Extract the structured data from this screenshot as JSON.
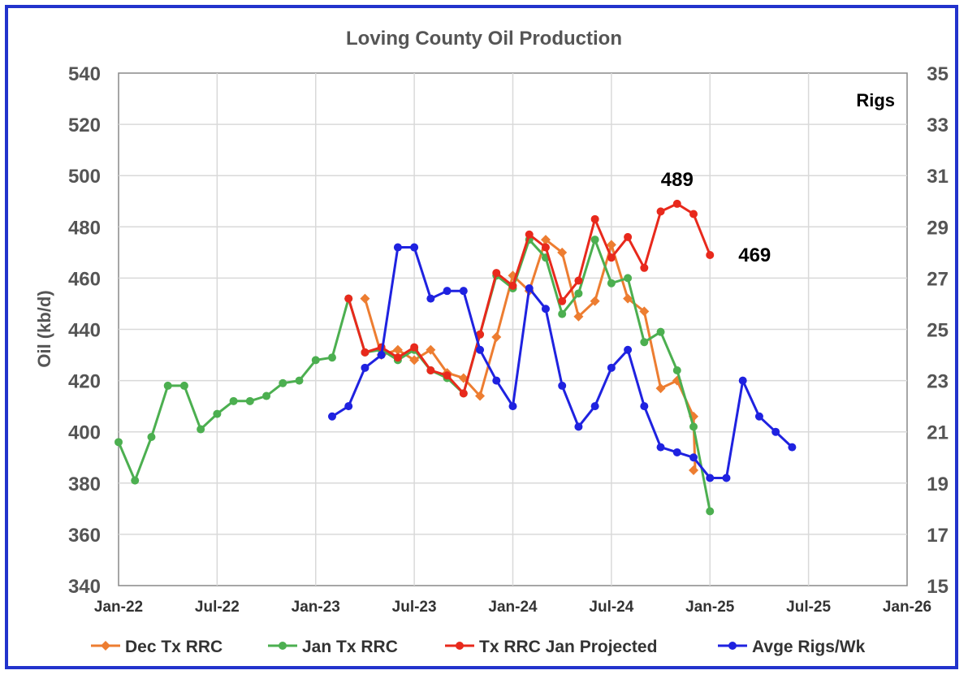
{
  "chart_data": {
    "type": "line",
    "title": "Loving County Oil Production",
    "ylabel": "Oil (kb/d)",
    "y2label": "Rigs",
    "ylim": [
      340,
      540
    ],
    "y_ticks": [
      "540",
      "520",
      "500",
      "480",
      "460",
      "440",
      "420",
      "400",
      "380",
      "360",
      "340"
    ],
    "y2lim": [
      15,
      35
    ],
    "y2_ticks": [
      "35",
      "33",
      "31",
      "29",
      "27",
      "25",
      "23",
      "21",
      "19",
      "17",
      "15"
    ],
    "xlim": [
      "2022-01",
      "2026-01"
    ],
    "x_ticks": [
      {
        "date": "2022-01",
        "label": "Jan-22"
      },
      {
        "date": "2022-07",
        "label": "Jul-22"
      },
      {
        "date": "2023-01",
        "label": "Jan-23"
      },
      {
        "date": "2023-07",
        "label": "Jul-23"
      },
      {
        "date": "2024-01",
        "label": "Jan-24"
      },
      {
        "date": "2024-07",
        "label": "Jul-24"
      },
      {
        "date": "2025-01",
        "label": "Jan-25"
      },
      {
        "date": "2025-07",
        "label": "Jul-25"
      },
      {
        "date": "2026-01",
        "label": "Jan-26"
      }
    ],
    "grid": true,
    "legend_position": "bottom",
    "series": [
      {
        "name": "Dec Tx RRC",
        "color": "#ed7d31",
        "marker": "diamond",
        "axis": "left",
        "x": [
          "2023-04",
          "2023-05",
          "2023-06",
          "2023-07",
          "2023-08",
          "2023-09",
          "2023-10",
          "2023-11",
          "2023-12",
          "2024-01",
          "2024-02",
          "2024-03",
          "2024-04",
          "2024-05",
          "2024-06",
          "2024-07",
          "2024-08",
          "2024-09",
          "2024-10",
          "2024-11",
          "2024-12"
        ],
        "y": [
          452,
          430,
          432,
          428,
          432,
          423,
          421,
          414,
          437,
          461,
          455,
          475,
          470,
          445,
          451,
          473,
          452,
          447,
          417,
          420,
          406
        ]
      },
      {
        "name": "Dec Tx RRC tail",
        "color": "#ed7d31",
        "marker": "diamond",
        "axis": "left",
        "x": [
          "2024-12"
        ],
        "y": [
          385
        ]
      },
      {
        "name": "Jan Tx RRC",
        "color": "#4caf50",
        "marker": "circle",
        "axis": "left",
        "x": [
          "2022-01",
          "2022-02",
          "2022-03",
          "2022-04",
          "2022-05",
          "2022-06",
          "2022-07",
          "2022-08",
          "2022-09",
          "2022-10",
          "2022-11",
          "2022-12",
          "2023-01",
          "2023-02",
          "2023-03",
          "2023-04",
          "2023-05",
          "2023-06",
          "2023-07",
          "2023-08",
          "2023-09",
          "2023-10",
          "2023-11",
          "2023-12",
          "2024-01",
          "2024-02",
          "2024-03",
          "2024-04",
          "2024-05",
          "2024-06",
          "2024-07",
          "2024-08",
          "2024-09",
          "2024-10",
          "2024-11",
          "2024-12",
          "2025-01"
        ],
        "y": [
          396,
          381,
          398,
          418,
          418,
          401,
          407,
          412,
          412,
          414,
          419,
          420,
          428,
          429,
          452,
          431,
          432,
          428,
          432,
          424,
          421,
          415,
          438,
          461,
          456,
          475,
          468,
          446,
          454,
          475,
          458,
          460,
          435,
          439,
          424,
          402,
          369
        ]
      },
      {
        "name": "Tx RRC Jan Projected",
        "color": "#e8291c",
        "marker": "circle",
        "axis": "left",
        "x": [
          "2023-03",
          "2023-04",
          "2023-05",
          "2023-06",
          "2023-07",
          "2023-08",
          "2023-09",
          "2023-10",
          "2023-11",
          "2023-12",
          "2024-01",
          "2024-02",
          "2024-03",
          "2024-04",
          "2024-05",
          "2024-06",
          "2024-07",
          "2024-08",
          "2024-09",
          "2024-10",
          "2024-11",
          "2024-12",
          "2025-01"
        ],
        "y": [
          452,
          431,
          433,
          429,
          433,
          424,
          422,
          415,
          438,
          462,
          457,
          477,
          472,
          451,
          459,
          483,
          468,
          476,
          464,
          486,
          489,
          485,
          469
        ]
      },
      {
        "name": "Avge Rigs/Wk",
        "color": "#1f22e0",
        "marker": "circle",
        "axis": "right",
        "x": [
          "2023-02",
          "2023-03",
          "2023-04",
          "2023-05",
          "2023-06",
          "2023-07",
          "2023-08",
          "2023-09",
          "2023-10",
          "2023-11",
          "2023-12",
          "2024-01",
          "2024-02",
          "2024-03",
          "2024-04",
          "2024-05",
          "2024-06",
          "2024-07",
          "2024-08",
          "2024-09",
          "2024-10",
          "2024-11",
          "2024-12",
          "2025-01",
          "2025-02",
          "2025-03",
          "2025-04",
          "2025-05",
          "2025-06"
        ],
        "y": [
          21.6,
          22.0,
          23.5,
          24.0,
          28.2,
          28.2,
          26.2,
          26.5,
          26.5,
          24.2,
          23.0,
          22.0,
          26.6,
          25.8,
          22.8,
          21.2,
          22.0,
          23.5,
          24.2,
          22.0,
          20.4,
          20.2,
          20.0,
          19.2,
          19.2,
          23.0,
          21.6,
          21.0,
          20.4
        ]
      }
    ],
    "annotations": [
      {
        "text": "489",
        "date": "2024-11",
        "value": 489
      },
      {
        "text": "469",
        "date": "2025-01",
        "value": 469
      }
    ],
    "legend": [
      {
        "label": "Dec Tx RRC",
        "color": "#ed7d31",
        "marker": "diamond"
      },
      {
        "label": "Jan Tx RRC",
        "color": "#4caf50",
        "marker": "circle"
      },
      {
        "label": "Tx RRC Jan Projected",
        "color": "#e8291c",
        "marker": "circle"
      },
      {
        "label": "Avge Rigs/Wk",
        "color": "#1f22e0",
        "marker": "circle"
      }
    ]
  }
}
